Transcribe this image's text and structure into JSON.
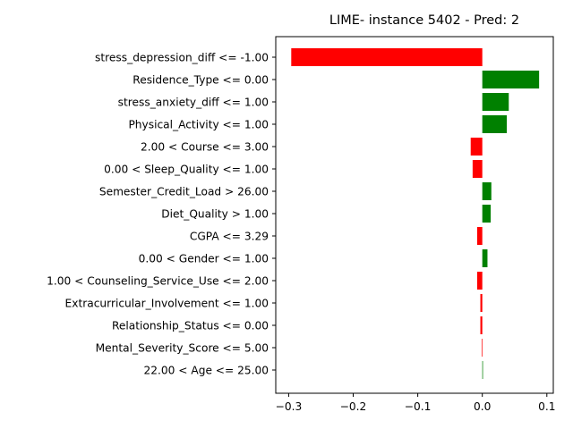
{
  "chart_data": {
    "type": "bar",
    "orientation": "horizontal",
    "title": "LIME- instance 5402 - Pred: 2",
    "xlabel": "",
    "ylabel": "",
    "xlim": [
      -0.32,
      0.11
    ],
    "xticks": [
      -0.3,
      -0.2,
      -0.1,
      0.0,
      0.1
    ],
    "xtick_labels": [
      "−0.3",
      "−0.2",
      "−0.1",
      "0.0",
      "0.1"
    ],
    "grid": false,
    "categories": [
      "stress_depression_diff <= -1.00",
      "Residence_Type <= 0.00",
      "stress_anxiety_diff <= 1.00",
      "Physical_Activity <= 1.00",
      "2.00 < Course <= 3.00",
      "0.00 < Sleep_Quality <= 1.00",
      "Semester_Credit_Load > 26.00",
      "Diet_Quality > 1.00",
      "CGPA <= 3.29",
      "0.00 < Gender <= 1.00",
      "1.00 < Counseling_Service_Use <= 2.00",
      "Extracurricular_Involvement <= 1.00",
      "Relationship_Status <= 0.00",
      "Mental_Severity_Score <= 5.00",
      "22.00 < Age <= 25.00"
    ],
    "values": [
      -0.296,
      0.088,
      0.041,
      0.038,
      -0.018,
      -0.015,
      0.014,
      0.013,
      -0.008,
      0.008,
      -0.008,
      -0.003,
      -0.003,
      -0.001,
      0.001
    ],
    "colors": {
      "positive": "#008000",
      "negative": "#ff0000",
      "axis": "#000000"
    }
  }
}
